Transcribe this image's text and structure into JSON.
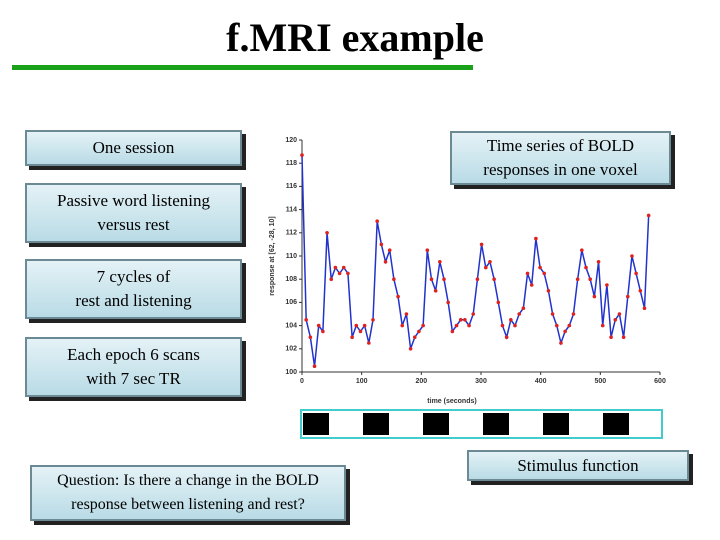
{
  "title": "f.MRI example",
  "boxes": [
    {
      "lines": [
        "One session"
      ]
    },
    {
      "lines": [
        "Passive word listening",
        "versus rest"
      ]
    },
    {
      "lines": [
        "7 cycles of",
        "rest and listening"
      ]
    },
    {
      "lines": [
        "Each epoch 6 scans",
        "with 7 sec TR"
      ]
    },
    {
      "lines": [
        "Question: Is there a change in the BOLD",
        "response between listening and rest?"
      ]
    },
    {
      "lines": [
        "Time series of BOLD",
        "responses in one voxel"
      ]
    },
    {
      "lines": [
        "Stimulus function"
      ]
    }
  ],
  "chart_data": {
    "type": "line",
    "x_label": "time (seconds)",
    "y_label": "response at [62, -28, 10]",
    "x": [
      0,
      7,
      14,
      21,
      28,
      35,
      42,
      49,
      56,
      63,
      70,
      77,
      84,
      91,
      98,
      105,
      112,
      119,
      126,
      133,
      140,
      147,
      154,
      161,
      168,
      175,
      182,
      189,
      196,
      203,
      210,
      217,
      224,
      231,
      238,
      245,
      252,
      259,
      266,
      273,
      280,
      287,
      294,
      301,
      308,
      315,
      322,
      329,
      336,
      343,
      350,
      357,
      364,
      371,
      378,
      385,
      392,
      399,
      406,
      413,
      420,
      427,
      434,
      441,
      448,
      455,
      462,
      469,
      476,
      483,
      490,
      497,
      504,
      511,
      518,
      525,
      532,
      539,
      546,
      553,
      560,
      567,
      574,
      581
    ],
    "series": [
      {
        "name": "BOLD",
        "color": "#2233cc",
        "marker_color": "#dd2222",
        "values": [
          118.7,
          104.5,
          103,
          100.5,
          104,
          103.5,
          112,
          108,
          109,
          108.5,
          109,
          108.5,
          103,
          104,
          103.5,
          104,
          102.5,
          104.5,
          113,
          111,
          109.5,
          110.5,
          108,
          106.5,
          104,
          105,
          102,
          103,
          103.5,
          104,
          110.5,
          108,
          107,
          109.5,
          108,
          106,
          103.5,
          104,
          104.5,
          104.5,
          104,
          105,
          108,
          111,
          109,
          109.5,
          108,
          106,
          104,
          103,
          104.5,
          104,
          105,
          105.5,
          108.5,
          107.5,
          111.5,
          109,
          108.5,
          107,
          105,
          104,
          102.5,
          103.5,
          104,
          105,
          108,
          110.5,
          109,
          108,
          106.5,
          109.5,
          104,
          107.5,
          103,
          104.5,
          105,
          103,
          106.5,
          110,
          108.5,
          107,
          105.5,
          113.5
        ]
      }
    ],
    "xlim": [
      0,
      600
    ],
    "ylim": [
      100,
      120
    ],
    "xticks": [
      0,
      100,
      200,
      300,
      400,
      500,
      600
    ],
    "yticks": [
      100,
      102,
      104,
      106,
      108,
      110,
      112,
      114,
      116,
      118,
      120
    ]
  }
}
